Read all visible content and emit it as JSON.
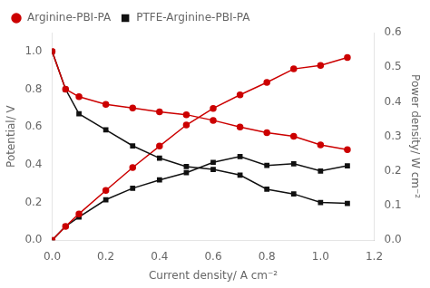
{
  "chart_data": {
    "type": "line",
    "xlabel": "Current density/ A cm⁻²",
    "ylabel": "Potential/ V",
    "y2label": "Power density/ W cm⁻²",
    "x": [
      0.0,
      0.05,
      0.1,
      0.2,
      0.3,
      0.4,
      0.5,
      0.6,
      0.7,
      0.8,
      0.9,
      1.0,
      1.1
    ],
    "series": [
      {
        "name": "Arginine-PBI-PA",
        "color": "#cc0000",
        "marker": "circle",
        "values": [
          1.0,
          0.8,
          0.76,
          0.72,
          0.7,
          0.68,
          0.665,
          0.635,
          0.6,
          0.57,
          0.55,
          0.505,
          0.48
        ]
      },
      {
        "name": "PTFE-Arginine-PBI-PA",
        "color": "#111111",
        "marker": "square",
        "values": [
          1.0,
          0.8,
          0.67,
          0.585,
          0.5,
          0.435,
          0.39,
          0.375,
          0.345,
          0.27,
          0.245,
          0.2,
          0.195
        ]
      },
      {
        "color": "#cc0000",
        "marker": "circle",
        "axis": "y2",
        "values": [
          0.0,
          0.04,
          0.076,
          0.144,
          0.21,
          0.272,
          0.333,
          0.381,
          0.42,
          0.456,
          0.495,
          0.505,
          0.528
        ]
      },
      {
        "color": "#111111",
        "marker": "square",
        "axis": "y2",
        "values": [
          0.0,
          0.04,
          0.067,
          0.117,
          0.15,
          0.174,
          0.195,
          0.225,
          0.242,
          0.216,
          0.221,
          0.2,
          0.215
        ]
      }
    ],
    "xlim": [
      0.0,
      1.2
    ],
    "xticks": [
      {
        "value": 0.0,
        "label": "0.0"
      },
      0.2,
      0.4,
      0.6,
      0.8,
      {
        "value": 1.0,
        "label": "1.0"
      },
      1.2
    ],
    "ylim": [
      0.0,
      1.1
    ],
    "yticks": [
      {
        "value": 0.0,
        "label": "0.0"
      },
      0.2,
      0.4,
      0.6,
      0.8,
      {
        "value": 1.0,
        "label": "1.0"
      }
    ],
    "y2lim": [
      0.0,
      0.6
    ],
    "y2ticks": [
      {
        "value": 0.0,
        "label": "0.0"
      },
      0.1,
      0.2,
      0.3,
      0.4,
      0.5,
      0.6
    ],
    "grid": false,
    "legend": "upper left"
  }
}
